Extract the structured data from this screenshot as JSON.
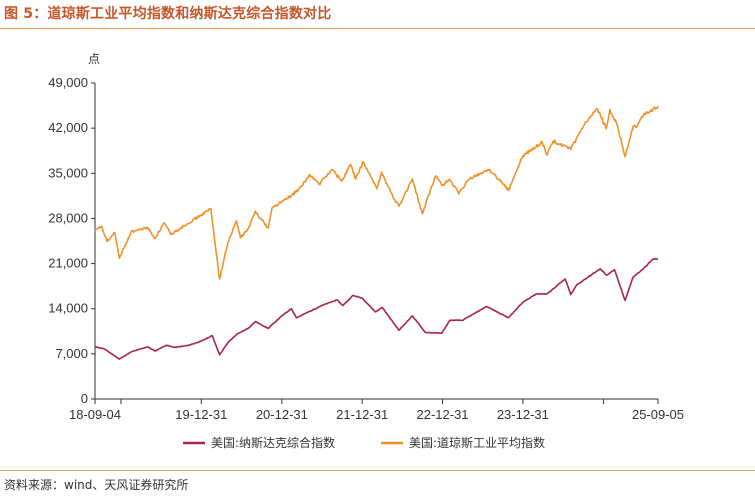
{
  "header": {
    "title": "图 5：道琼斯工业平均指数和纳斯达克综合指数对比"
  },
  "footer": {
    "source": "资料来源：wind、天风证券研究所"
  },
  "colors": {
    "nasdaq": "#A8244E",
    "dow": "#F0922B",
    "title": "#C5562A",
    "axis": "#333333"
  },
  "chart_data": {
    "type": "line",
    "title": "道琼斯工业平均指数和纳斯达克综合指数对比",
    "ylabel": "点",
    "xlabel": "",
    "ylim": [
      0,
      49000
    ],
    "yticks": [
      0,
      7000,
      14000,
      21000,
      28000,
      35000,
      42000,
      49000
    ],
    "ytick_labels": [
      "0",
      "7,000",
      "14,000",
      "21,000",
      "28,000",
      "35,000",
      "42,000",
      "49,000"
    ],
    "xlim": [
      "2018-09-04",
      "2025-09-05"
    ],
    "xticks": [
      "2018-09-04",
      "2019-12-31",
      "2020-12-31",
      "2021-12-31",
      "2022-12-31",
      "2023-12-31",
      "2025-09-05"
    ],
    "xtick_labels": [
      "18-09-04",
      "19-12-31",
      "20-12-31",
      "21-12-31",
      "22-12-31",
      "23-12-31",
      "25-09-05"
    ],
    "legend": {
      "position": "bottom-center"
    },
    "series": [
      {
        "name": "美国:纳斯达克综合指数",
        "color": "#A8244E",
        "x": [
          "2018-09-04",
          "2018-10-15",
          "2018-12-24",
          "2019-02-15",
          "2019-05-01",
          "2019-06-03",
          "2019-07-25",
          "2019-09-01",
          "2019-11-01",
          "2019-12-31",
          "2020-02-19",
          "2020-03-23",
          "2020-05-01",
          "2020-06-08",
          "2020-08-01",
          "2020-09-02",
          "2020-10-30",
          "2020-12-31",
          "2021-02-12",
          "2021-03-08",
          "2021-05-01",
          "2021-07-01",
          "2021-09-07",
          "2021-10-04",
          "2021-11-19",
          "2021-12-31",
          "2022-03-01",
          "2022-04-01",
          "2022-06-16",
          "2022-08-16",
          "2022-10-14",
          "2022-12-28",
          "2023-02-02",
          "2023-04-01",
          "2023-07-19",
          "2023-10-27",
          "2023-12-31",
          "2024-03-01",
          "2024-04-19",
          "2024-07-10",
          "2024-08-05",
          "2024-09-01",
          "2024-12-16",
          "2025-01-15",
          "2025-02-19",
          "2025-04-08",
          "2025-05-15",
          "2025-07-01",
          "2025-08-13",
          "2025-09-05"
        ],
        "values": [
          8090,
          7800,
          6190,
          7300,
          8100,
          7450,
          8330,
          8000,
          8300,
          8970,
          9820,
          6860,
          8800,
          10000,
          11000,
          12000,
          10950,
          12890,
          14000,
          12600,
          13500,
          14500,
          15370,
          14500,
          16050,
          15650,
          13500,
          14200,
          10650,
          12900,
          10320,
          10210,
          12200,
          12200,
          14350,
          12600,
          15010,
          16300,
          16300,
          18600,
          16200,
          17700,
          20170,
          19200,
          20060,
          15300,
          18900,
          20200,
          21700,
          21700
        ]
      },
      {
        "name": "美国:道琼斯工业平均指数",
        "color": "#F0922B",
        "x": [
          "2018-09-04",
          "2018-10-03",
          "2018-10-29",
          "2018-12-03",
          "2018-12-24",
          "2019-02-15",
          "2019-05-01",
          "2019-06-03",
          "2019-07-15",
          "2019-08-15",
          "2019-10-01",
          "2019-12-31",
          "2020-02-12",
          "2020-03-23",
          "2020-04-30",
          "2020-06-08",
          "2020-06-26",
          "2020-08-01",
          "2020-09-02",
          "2020-10-30",
          "2020-11-16",
          "2020-12-31",
          "2021-02-12",
          "2021-04-01",
          "2021-05-07",
          "2021-06-18",
          "2021-08-16",
          "2021-09-30",
          "2021-11-08",
          "2021-12-01",
          "2021-12-31",
          "2022-01-04",
          "2022-03-08",
          "2022-03-29",
          "2022-05-20",
          "2022-06-16",
          "2022-08-16",
          "2022-09-30",
          "2022-11-30",
          "2022-12-31",
          "2023-02-01",
          "2023-03-15",
          "2023-05-01",
          "2023-07-31",
          "2023-10-27",
          "2023-12-31",
          "2024-03-28",
          "2024-04-19",
          "2024-05-17",
          "2024-08-05",
          "2024-10-01",
          "2024-12-04",
          "2025-01-13",
          "2025-01-30",
          "2025-03-04",
          "2025-04-08",
          "2025-05-15",
          "2025-06-01",
          "2025-07-01",
          "2025-08-13",
          "2025-09-05"
        ],
        "values": [
          26000,
          26800,
          24400,
          25800,
          21800,
          25900,
          26600,
          24900,
          27300,
          25500,
          26600,
          28540,
          29500,
          18600,
          24300,
          27600,
          25000,
          26400,
          29100,
          26500,
          29600,
          30600,
          31500,
          33000,
          34800,
          33300,
          35600,
          33800,
          36400,
          34100,
          36340,
          36800,
          32600,
          35200,
          31300,
          29900,
          34100,
          28700,
          34600,
          33150,
          34100,
          31800,
          34100,
          35600,
          32400,
          37690,
          39800,
          37800,
          40000,
          38700,
          42300,
          45000,
          41900,
          44900,
          42500,
          37600,
          42300,
          42200,
          44100,
          44900,
          45400
        ]
      }
    ]
  }
}
